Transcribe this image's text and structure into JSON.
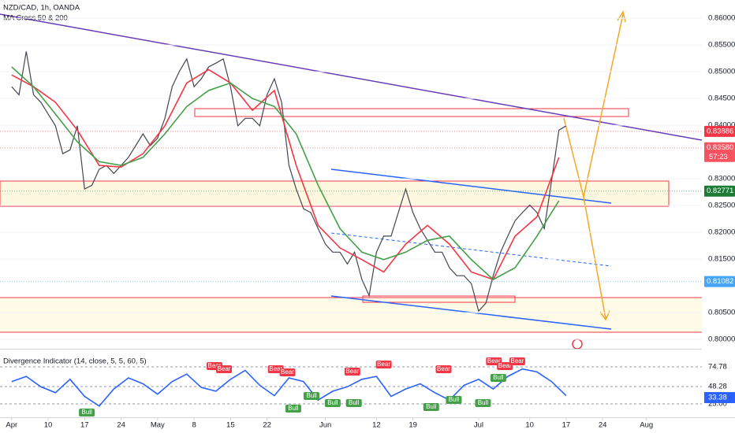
{
  "chart_data": [
    {
      "type": "line",
      "title": "NZD/CAD, 1h, OANDA",
      "subtitle": "MA Cross 50 & 200",
      "xlim": [
        -1.6,
        94.6
      ],
      "xticks": [
        {
          "value": 0,
          "label": "Apr"
        },
        {
          "value": 5,
          "label": "10"
        },
        {
          "value": 10,
          "label": "17"
        },
        {
          "value": 15,
          "label": "24"
        },
        {
          "value": 20,
          "label": "May"
        },
        {
          "value": 25,
          "label": "8"
        },
        {
          "value": 30,
          "label": "15"
        },
        {
          "value": 35,
          "label": "22"
        },
        {
          "value": 43,
          "label": "Jun"
        },
        {
          "value": 50,
          "label": "12"
        },
        {
          "value": 55,
          "label": "19"
        },
        {
          "value": 64,
          "label": "Jul"
        },
        {
          "value": 71,
          "label": "10"
        },
        {
          "value": 76,
          "label": "17"
        },
        {
          "value": 81,
          "label": "24"
        },
        {
          "value": 87,
          "label": "Aug"
        }
      ],
      "ylim": [
        0.7987,
        0.8634
      ],
      "yticks": [
        {
          "value": 0.86,
          "label": "0.86000"
        },
        {
          "value": 0.855,
          "label": "0.85500"
        },
        {
          "value": 0.85,
          "label": "0.85000"
        },
        {
          "value": 0.845,
          "label": "0.84500"
        },
        {
          "value": 0.84,
          "label": "0.84000"
        },
        {
          "value": 0.83,
          "label": "0.83000"
        },
        {
          "value": 0.825,
          "label": "0.82500"
        },
        {
          "value": 0.82,
          "label": "0.82000"
        },
        {
          "value": 0.815,
          "label": "0.81500"
        },
        {
          "value": 0.805,
          "label": "0.80500"
        },
        {
          "value": 0.8,
          "label": "0.80000"
        }
      ],
      "series": [
        {
          "color": "#434651",
          "x": [
            0,
            1,
            2,
            3,
            4,
            5,
            6,
            7,
            8,
            9,
            10,
            11,
            12,
            13,
            14,
            15,
            16,
            17,
            18,
            19,
            20,
            21,
            22,
            23,
            24,
            25,
            26,
            27,
            28,
            29,
            30,
            31,
            32,
            33,
            34,
            35,
            36,
            37,
            38,
            39,
            40,
            41,
            42,
            43,
            44,
            45,
            46,
            47,
            48,
            49,
            50,
            51,
            52,
            53,
            54,
            55,
            56,
            57,
            58,
            59,
            60,
            61,
            62,
            63,
            64,
            65,
            66,
            67,
            68,
            69,
            70,
            71,
            72,
            73,
            74,
            75,
            76
          ],
          "values": [
            0.8472,
            0.8457,
            0.8538,
            0.8457,
            0.8443,
            0.8421,
            0.8399,
            0.8347,
            0.8354,
            0.8399,
            0.8281,
            0.8288,
            0.8318,
            0.8325,
            0.831,
            0.8325,
            0.834,
            0.8362,
            0.8384,
            0.8362,
            0.8376,
            0.8413,
            0.8472,
            0.8501,
            0.8524,
            0.8472,
            0.8487,
            0.8509,
            0.8516,
            0.8524,
            0.8472,
            0.8399,
            0.8413,
            0.8413,
            0.8399,
            0.8457,
            0.8487,
            0.8443,
            0.8325,
            0.8281,
            0.8244,
            0.8237,
            0.8207,
            0.8178,
            0.8163,
            0.8163,
            0.8141,
            0.8163,
            0.8112,
            0.8082,
            0.8163,
            0.8193,
            0.8193,
            0.8237,
            0.8281,
            0.8237,
            0.8207,
            0.8185,
            0.8163,
            0.8163,
            0.8134,
            0.8119,
            0.8119,
            0.8104,
            0.8053,
            0.8068,
            0.8119,
            0.8163,
            0.8193,
            0.8222,
            0.8237,
            0.8251,
            0.8237,
            0.8207,
            0.8296,
            0.8391,
            0.8399
          ]
        },
        {
          "color": "#f23645",
          "x": [
            0,
            3,
            6,
            9,
            12,
            15,
            18,
            21,
            24,
            27,
            30,
            33,
            36,
            39,
            42,
            45,
            48,
            51,
            54,
            57,
            60,
            63,
            66,
            69,
            72,
            75
          ],
          "values": [
            0.8494,
            0.8472,
            0.8443,
            0.8391,
            0.8325,
            0.8322,
            0.8347,
            0.8399,
            0.8479,
            0.8504,
            0.8479,
            0.8428,
            0.8465,
            0.8325,
            0.8213,
            0.8171,
            0.8149,
            0.8126,
            0.8178,
            0.8213,
            0.8178,
            0.8126,
            0.8112,
            0.8193,
            0.8229,
            0.834
          ]
        },
        {
          "color": "#43a047",
          "x": [
            0,
            3,
            6,
            9,
            12,
            15,
            18,
            21,
            24,
            27,
            30,
            33,
            36,
            39,
            42,
            45,
            48,
            51,
            54,
            57,
            60,
            63,
            66,
            69,
            72,
            75
          ],
          "values": [
            0.8509,
            0.8472,
            0.8421,
            0.8369,
            0.8332,
            0.8325,
            0.834,
            0.8384,
            0.8435,
            0.8465,
            0.8479,
            0.845,
            0.8435,
            0.8384,
            0.8288,
            0.8207,
            0.8163,
            0.8149,
            0.8163,
            0.8185,
            0.8193,
            0.8149,
            0.8112,
            0.8134,
            0.8193,
            0.8259
          ]
        }
      ],
      "price_labels": [
        {
          "value": 0.83886,
          "label": "0.83886",
          "color": "#f23645"
        },
        {
          "value": 0.8358,
          "label": "0.83580",
          "color": "#f7525f"
        },
        {
          "value": 0.82771,
          "label": "0.82771",
          "color": "#1b7d35"
        },
        {
          "value": 0.81082,
          "label": "0.81082",
          "color": "#42a5f5"
        }
      ],
      "countdown": "57:23"
    },
    {
      "type": "line",
      "title": "Divergence Indicator (14, close, 5, 5, 60, 5)",
      "xlim": [
        -1.6,
        94.6
      ],
      "ylim": [
        6.9,
        97.1
      ],
      "yticks": [
        74.78,
        48.28,
        {
          "value": 25,
          "label": "25.00"
        }
      ],
      "series": [
        {
          "color": "#2962ff",
          "x": [
            0,
            2,
            4,
            6,
            8,
            10,
            12,
            14,
            16,
            18,
            20,
            22,
            24,
            26,
            28,
            30,
            32,
            34,
            36,
            38,
            40,
            42,
            44,
            46,
            48,
            50,
            52,
            54,
            56,
            58,
            60,
            62,
            64,
            66,
            68,
            70,
            72,
            74,
            76
          ],
          "values": [
            55,
            62,
            48,
            40,
            58,
            35,
            22,
            45,
            60,
            52,
            38,
            55,
            65,
            47,
            42,
            58,
            70,
            50,
            36,
            60,
            55,
            30,
            42,
            48,
            58,
            62,
            35,
            45,
            52,
            40,
            30,
            50,
            58,
            45,
            62,
            72,
            68,
            55,
            36
          ]
        }
      ],
      "last_label": {
        "value": 33.38,
        "label": "33.38"
      },
      "signals": [
        {
          "label": "Bear",
          "x": 27.8,
          "value": 72.7
        },
        {
          "label": "Bear",
          "x": 29.1,
          "value": 68.4
        },
        {
          "label": "Bear",
          "x": 36.2,
          "value": 68.4
        },
        {
          "label": "Bear",
          "x": 37.8,
          "value": 64.2
        },
        {
          "label": "Bear",
          "x": 46.7,
          "value": 65.3
        },
        {
          "label": "Bear",
          "x": 51,
          "value": 74.8
        },
        {
          "label": "Bear",
          "x": 59.2,
          "value": 68.4
        },
        {
          "label": "Bear",
          "x": 66.1,
          "value": 79
        },
        {
          "label": "Bear",
          "x": 67.6,
          "value": 72.7
        },
        {
          "label": "Bear",
          "x": 69.3,
          "value": 79
        },
        {
          "label": "Bull",
          "x": 10.3,
          "value": 16.5
        },
        {
          "label": "Bull",
          "x": 38.6,
          "value": 21.8
        },
        {
          "label": "Bull",
          "x": 41.1,
          "value": 38.7
        },
        {
          "label": "Bull",
          "x": 44,
          "value": 29.2
        },
        {
          "label": "Bull",
          "x": 46.9,
          "value": 29.2
        },
        {
          "label": "Bull",
          "x": 57.5,
          "value": 23.9
        },
        {
          "label": "Bull",
          "x": 60.6,
          "value": 33.4
        },
        {
          "label": "Bull",
          "x": 64.6,
          "value": 29.2
        },
        {
          "label": "Bull",
          "x": 66.7,
          "value": 63.1
        }
      ]
    }
  ]
}
